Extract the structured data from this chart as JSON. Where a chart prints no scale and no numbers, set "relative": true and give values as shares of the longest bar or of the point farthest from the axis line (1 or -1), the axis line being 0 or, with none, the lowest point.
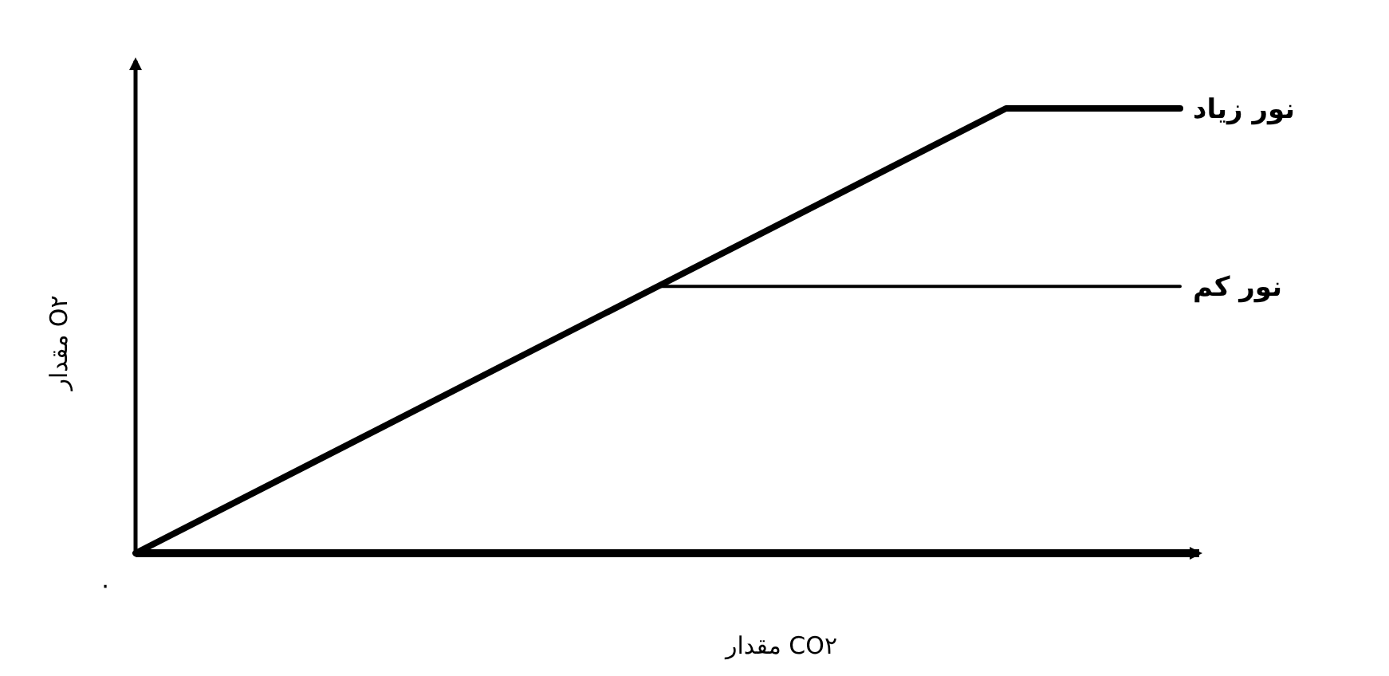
{
  "chart_data": {
    "type": "line",
    "relative": true,
    "xlabel": "مقدار CO۲",
    "ylabel": "مقدار O۲",
    "categories": [
      null,
      null,
      null,
      null,
      null,
      null,
      null
    ],
    "series": [
      {
        "name": "نور زیاد",
        "color": "#000000",
        "values": [
          0,
          0.2,
          0.4,
          0.6,
          0.8,
          1,
          1
        ]
      },
      {
        "name": "نور کم",
        "color": "#000000",
        "values": [
          0,
          0.2,
          0.4,
          0.6,
          0.6,
          0.6,
          0.6
        ]
      }
    ],
    "annotations": [
      "۰"
    ]
  }
}
